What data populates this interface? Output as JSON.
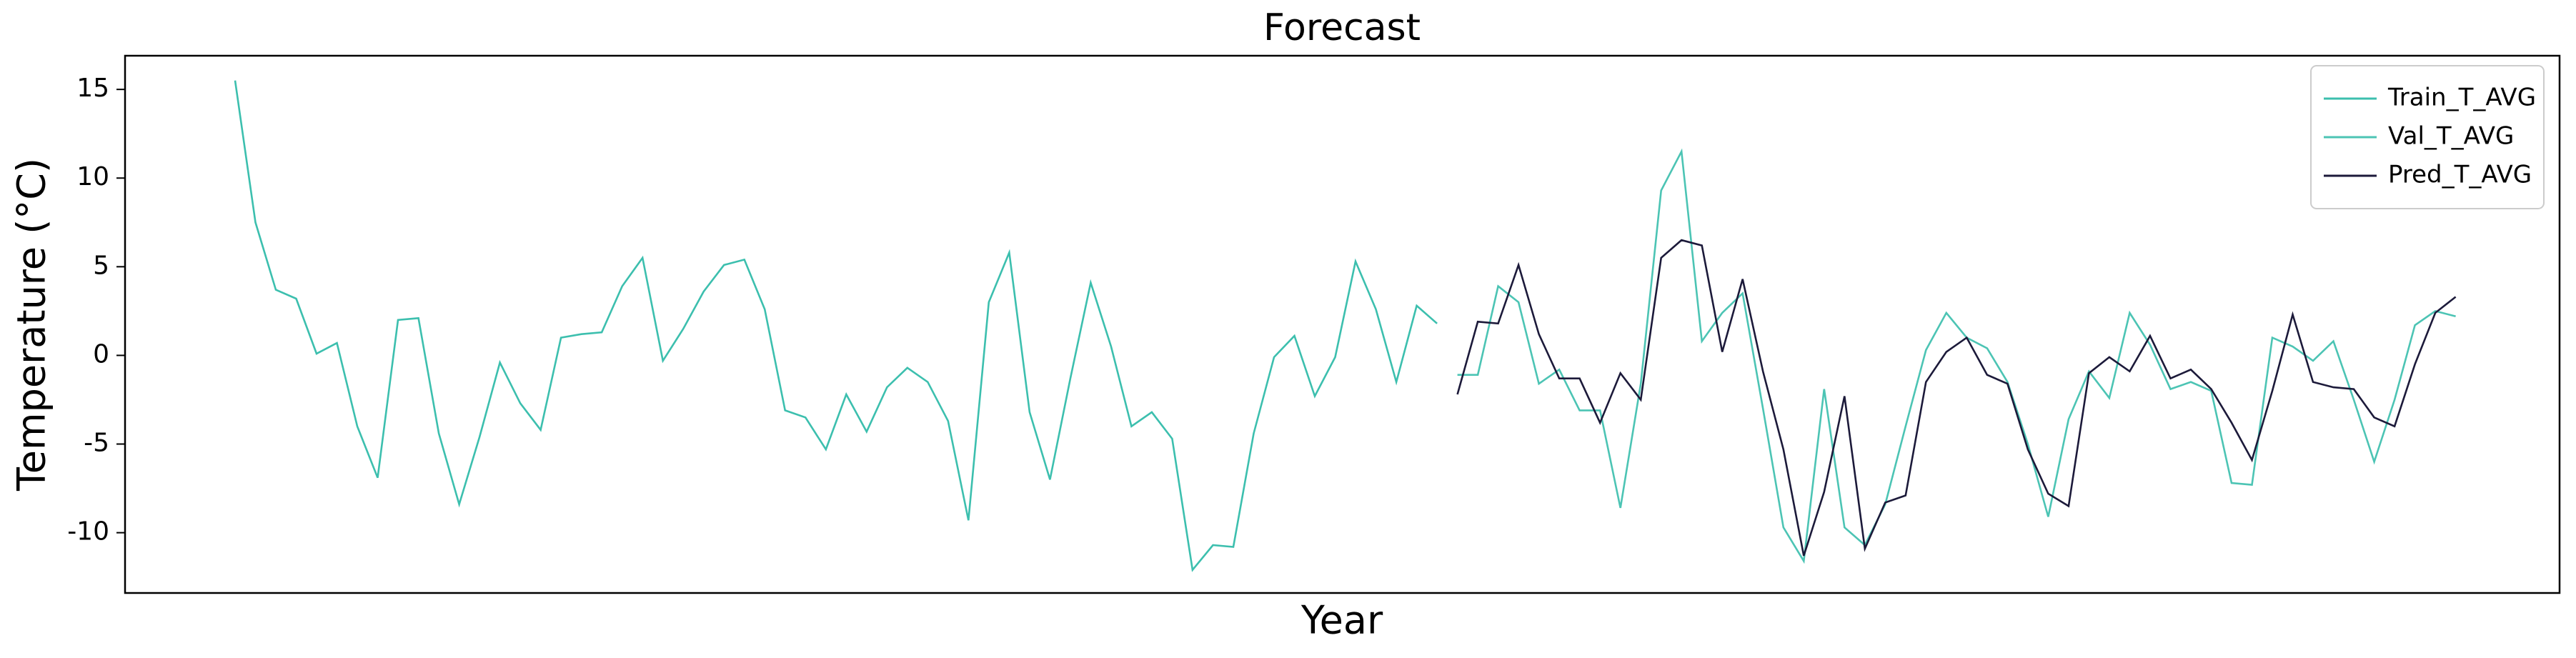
{
  "chart_data": {
    "type": "line",
    "title": "Forecast",
    "x_label": "Year",
    "y_label": "Temperature (°C)",
    "x": [
      0,
      1,
      2,
      3,
      4,
      5,
      6,
      7,
      8,
      9,
      10,
      11,
      12,
      13,
      14,
      15,
      16,
      17,
      18,
      19,
      20,
      21,
      22,
      23,
      24,
      25,
      26,
      27,
      28,
      29,
      30,
      31,
      32,
      33,
      34,
      35,
      36,
      37,
      38,
      39,
      40,
      41,
      42,
      43,
      44,
      45,
      46,
      47,
      48,
      49,
      50,
      51,
      52,
      53,
      54,
      55,
      56,
      57,
      58,
      59,
      60,
      61,
      62,
      63,
      64,
      65,
      66,
      67,
      68,
      69,
      70,
      71,
      72,
      73,
      74,
      75,
      76,
      77,
      78,
      79,
      80,
      81,
      82,
      83,
      84,
      85,
      86,
      87,
      88,
      89,
      90,
      91,
      92,
      93,
      94,
      95,
      96,
      97,
      98,
      99,
      100,
      101,
      102,
      103,
      104,
      105,
      106,
      107,
      108,
      109
    ],
    "xlim": [
      -5.4,
      114.1
    ],
    "ylim": [
      -13.4,
      16.9
    ],
    "yticks": [
      -10,
      -5,
      0,
      5,
      10,
      15
    ],
    "legend": "upper right",
    "series": [
      {
        "name": "Train_T_AVG",
        "color": "#3cbfae",
        "values": [
          15.5,
          7.5,
          3.7,
          3.2,
          0.1,
          0.7,
          -4.0,
          -6.9,
          2.0,
          2.1,
          -4.4,
          -8.4,
          -4.6,
          -0.4,
          -2.7,
          -4.2,
          1.0,
          1.2,
          1.3,
          3.9,
          5.5,
          -0.3,
          1.5,
          3.6,
          5.1,
          5.4,
          2.6,
          -3.1,
          -3.5,
          -5.3,
          -2.2,
          -4.3,
          -1.8,
          -0.7,
          -1.5,
          -3.7,
          -9.3,
          3.0,
          5.8,
          -3.2,
          -7.0,
          -1.3,
          4.1,
          0.5,
          -4.0,
          -3.2,
          -4.7,
          -12.1,
          -10.7,
          -10.8,
          -4.4,
          -0.1,
          1.1,
          -2.3,
          -0.1,
          5.3,
          2.6,
          -1.5,
          2.8,
          1.8,
          null,
          null,
          null,
          null,
          null,
          null,
          null,
          null,
          null,
          null,
          null,
          null,
          null,
          null,
          null,
          null,
          null,
          null,
          null,
          null,
          null,
          null,
          null,
          null,
          null,
          null,
          null,
          null,
          null,
          null,
          null,
          null,
          null,
          null,
          null,
          null,
          null,
          null,
          null,
          null,
          null,
          null,
          null,
          null,
          null,
          null,
          null,
          null,
          null,
          null
        ]
      },
      {
        "name": "Val_T_AVG",
        "color": "#4cc4b4",
        "values": [
          null,
          null,
          null,
          null,
          null,
          null,
          null,
          null,
          null,
          null,
          null,
          null,
          null,
          null,
          null,
          null,
          null,
          null,
          null,
          null,
          null,
          null,
          null,
          null,
          null,
          null,
          null,
          null,
          null,
          null,
          null,
          null,
          null,
          null,
          null,
          null,
          null,
          null,
          null,
          null,
          null,
          null,
          null,
          null,
          null,
          null,
          null,
          null,
          null,
          null,
          null,
          null,
          null,
          null,
          null,
          null,
          null,
          null,
          null,
          null,
          -1.1,
          -1.1,
          3.9,
          3.0,
          -1.6,
          -0.8,
          -3.1,
          -3.1,
          -8.6,
          -1.6,
          9.3,
          11.5,
          0.8,
          2.4,
          3.5,
          -3.0,
          -9.7,
          -11.6,
          -1.9,
          -9.7,
          -10.7,
          -8.4,
          -4.0,
          0.3,
          2.4,
          1.0,
          0.4,
          -1.5,
          -5.0,
          -9.1,
          -3.6,
          -0.9,
          -2.4,
          2.4,
          0.6,
          -1.9,
          -1.5,
          -2.0,
          -7.2,
          -7.3,
          1.0,
          0.5,
          -0.3,
          0.8,
          -2.5,
          -6.0,
          -2.5,
          1.7,
          2.5,
          2.2
        ]
      },
      {
        "name": "Pred_T_AVG",
        "color": "#1c1a3a",
        "values": [
          null,
          null,
          null,
          null,
          null,
          null,
          null,
          null,
          null,
          null,
          null,
          null,
          null,
          null,
          null,
          null,
          null,
          null,
          null,
          null,
          null,
          null,
          null,
          null,
          null,
          null,
          null,
          null,
          null,
          null,
          null,
          null,
          null,
          null,
          null,
          null,
          null,
          null,
          null,
          null,
          null,
          null,
          null,
          null,
          null,
          null,
          null,
          null,
          null,
          null,
          null,
          null,
          null,
          null,
          null,
          null,
          null,
          null,
          null,
          null,
          -2.2,
          1.9,
          1.8,
          5.1,
          1.2,
          -1.3,
          -1.3,
          -3.8,
          -1.0,
          -2.5,
          5.5,
          6.5,
          6.2,
          0.2,
          4.3,
          -0.9,
          -5.3,
          -11.3,
          -7.7,
          -2.3,
          -10.9,
          -8.3,
          -7.9,
          -1.5,
          0.2,
          1.0,
          -1.1,
          -1.6,
          -5.3,
          -7.8,
          -8.5,
          -1.0,
          -0.1,
          -0.9,
          1.1,
          -1.3,
          -0.8,
          -1.9,
          -3.8,
          -5.9,
          -2.0,
          2.3,
          -1.5,
          -1.8,
          -1.9,
          -3.5,
          -4.0,
          -0.5,
          2.4,
          3.3
        ]
      }
    ]
  }
}
